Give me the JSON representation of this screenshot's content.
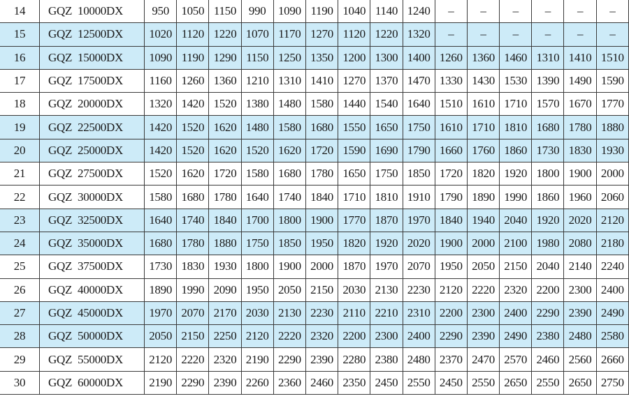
{
  "colors": {
    "highlight_row": "#cdebf8",
    "border": "#3a3a3a"
  },
  "table": {
    "rows": [
      {
        "no": "14",
        "model": "GQZ  10000DX",
        "highlight": false,
        "values": [
          "950",
          "1050",
          "1150",
          "990",
          "1090",
          "1190",
          "1040",
          "1140",
          "1240",
          "–",
          "–",
          "–",
          "–",
          "–",
          "–"
        ]
      },
      {
        "no": "15",
        "model": "GQZ  12500DX",
        "highlight": true,
        "values": [
          "1020",
          "1120",
          "1220",
          "1070",
          "1170",
          "1270",
          "1120",
          "1220",
          "1320",
          "–",
          "–",
          "–",
          "–",
          "–",
          "–"
        ]
      },
      {
        "no": "16",
        "model": "GQZ  15000DX",
        "highlight": true,
        "values": [
          "1090",
          "1190",
          "1290",
          "1150",
          "1250",
          "1350",
          "1200",
          "1300",
          "1400",
          "1260",
          "1360",
          "1460",
          "1310",
          "1410",
          "1510"
        ]
      },
      {
        "no": "17",
        "model": "GQZ  17500DX",
        "highlight": false,
        "values": [
          "1160",
          "1260",
          "1360",
          "1210",
          "1310",
          "1410",
          "1270",
          "1370",
          "1470",
          "1330",
          "1430",
          "1530",
          "1390",
          "1490",
          "1590"
        ]
      },
      {
        "no": "18",
        "model": "GQZ  20000DX",
        "highlight": false,
        "values": [
          "1320",
          "1420",
          "1520",
          "1380",
          "1480",
          "1580",
          "1440",
          "1540",
          "1640",
          "1510",
          "1610",
          "1710",
          "1570",
          "1670",
          "1770"
        ]
      },
      {
        "no": "19",
        "model": "GQZ  22500DX",
        "highlight": true,
        "values": [
          "1420",
          "1520",
          "1620",
          "1480",
          "1580",
          "1680",
          "1550",
          "1650",
          "1750",
          "1610",
          "1710",
          "1810",
          "1680",
          "1780",
          "1880"
        ]
      },
      {
        "no": "20",
        "model": "GQZ  25000DX",
        "highlight": true,
        "values": [
          "1420",
          "1520",
          "1620",
          "1520",
          "1620",
          "1720",
          "1590",
          "1690",
          "1790",
          "1660",
          "1760",
          "1860",
          "1730",
          "1830",
          "1930"
        ]
      },
      {
        "no": "21",
        "model": "GQZ  27500DX",
        "highlight": false,
        "values": [
          "1520",
          "1620",
          "1720",
          "1580",
          "1680",
          "1780",
          "1650",
          "1750",
          "1850",
          "1720",
          "1820",
          "1920",
          "1800",
          "1900",
          "2000"
        ]
      },
      {
        "no": "22",
        "model": "GQZ  30000DX",
        "highlight": false,
        "values": [
          "1580",
          "1680",
          "1780",
          "1640",
          "1740",
          "1840",
          "1710",
          "1810",
          "1910",
          "1790",
          "1890",
          "1990",
          "1860",
          "1960",
          "2060"
        ]
      },
      {
        "no": "23",
        "model": "GQZ  32500DX",
        "highlight": true,
        "values": [
          "1640",
          "1740",
          "1840",
          "1700",
          "1800",
          "1900",
          "1770",
          "1870",
          "1970",
          "1840",
          "1940",
          "2040",
          "1920",
          "2020",
          "2120"
        ]
      },
      {
        "no": "24",
        "model": "GQZ  35000DX",
        "highlight": true,
        "values": [
          "1680",
          "1780",
          "1880",
          "1750",
          "1850",
          "1950",
          "1820",
          "1920",
          "2020",
          "1900",
          "2000",
          "2100",
          "1980",
          "2080",
          "2180"
        ]
      },
      {
        "no": "25",
        "model": "GQZ  37500DX",
        "highlight": false,
        "values": [
          "1730",
          "1830",
          "1930",
          "1800",
          "1900",
          "2000",
          "1870",
          "1970",
          "2070",
          "1950",
          "2050",
          "2150",
          "2040",
          "2140",
          "2240"
        ]
      },
      {
        "no": "26",
        "model": "GQZ  40000DX",
        "highlight": false,
        "values": [
          "1890",
          "1990",
          "2090",
          "1950",
          "2050",
          "2150",
          "2030",
          "2130",
          "2230",
          "2120",
          "2220",
          "2320",
          "2200",
          "2300",
          "2400"
        ]
      },
      {
        "no": "27",
        "model": "GQZ  45000DX",
        "highlight": true,
        "values": [
          "1970",
          "2070",
          "2170",
          "2030",
          "2130",
          "2230",
          "2110",
          "2210",
          "2310",
          "2200",
          "2300",
          "2400",
          "2290",
          "2390",
          "2490"
        ]
      },
      {
        "no": "28",
        "model": "GQZ  50000DX",
        "highlight": true,
        "values": [
          "2050",
          "2150",
          "2250",
          "2120",
          "2220",
          "2320",
          "2200",
          "2300",
          "2400",
          "2290",
          "2390",
          "2490",
          "2380",
          "2480",
          "2580"
        ]
      },
      {
        "no": "29",
        "model": "GQZ  55000DX",
        "highlight": false,
        "values": [
          "2120",
          "2220",
          "2320",
          "2190",
          "2290",
          "2390",
          "2280",
          "2380",
          "2480",
          "2370",
          "2470",
          "2570",
          "2460",
          "2560",
          "2660"
        ]
      },
      {
        "no": "30",
        "model": "GQZ  60000DX",
        "highlight": false,
        "values": [
          "2190",
          "2290",
          "2390",
          "2260",
          "2360",
          "2460",
          "2350",
          "2450",
          "2550",
          "2450",
          "2550",
          "2650",
          "2550",
          "2650",
          "2750"
        ]
      }
    ]
  }
}
